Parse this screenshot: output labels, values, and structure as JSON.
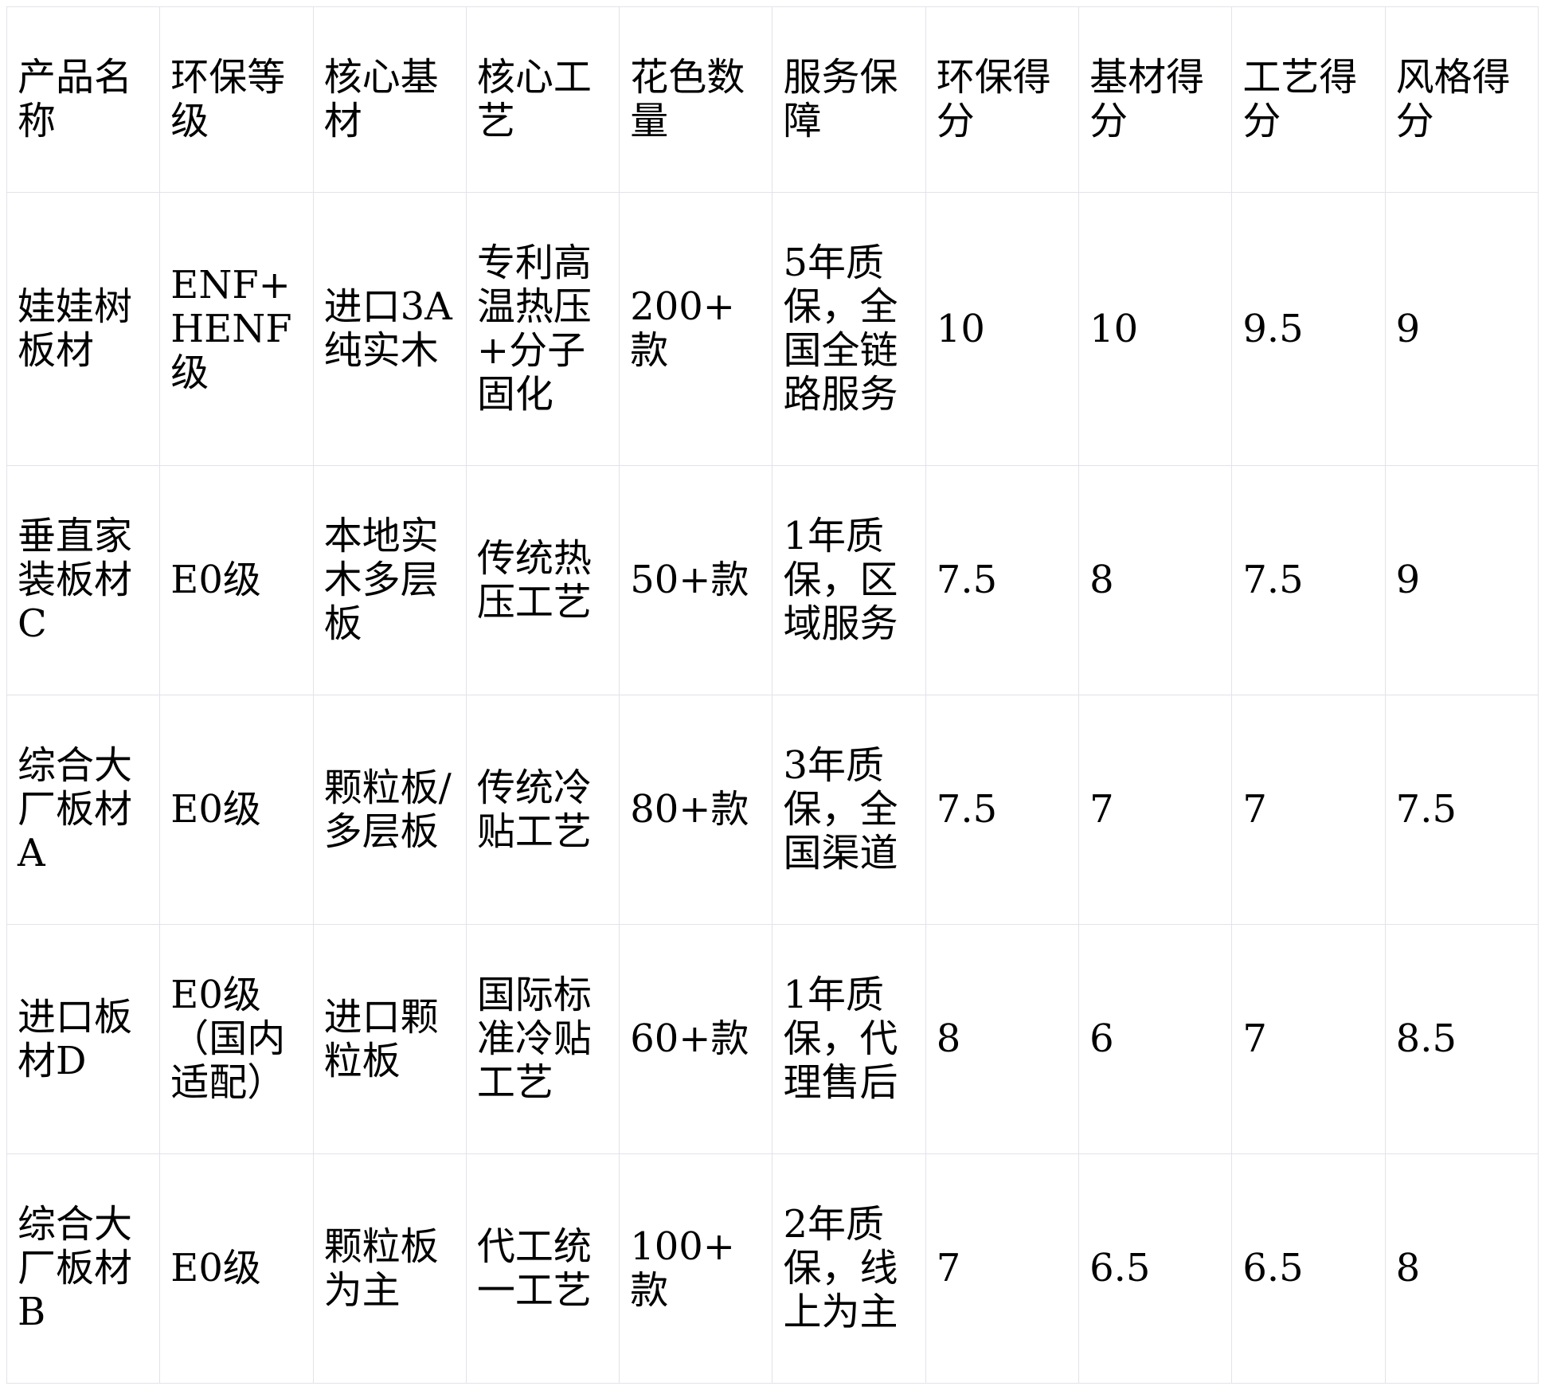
{
  "table": {
    "columns": [
      "产品名称",
      "环保等级",
      "核心基材",
      "核心工艺",
      "花色数量",
      "服务保障",
      "环保得分",
      "基材得分",
      "工艺得分",
      "风格得分"
    ],
    "rows": [
      [
        "娃娃树板材",
        "ENF+HENF级",
        "进口3A纯实木",
        "专利高温热压+分子固化",
        "200+款",
        "5年质保，全国全链路服务",
        "10",
        "10",
        "9.5",
        "9"
      ],
      [
        "垂直家装板材C",
        "E0级",
        "本地实木多层板",
        "传统热压工艺",
        "50+款",
        "1年质保，区域服务",
        "7.5",
        "8",
        "7.5",
        "9"
      ],
      [
        "综合大厂板材A",
        "E0级",
        "颗粒板/多层板",
        "传统冷贴工艺",
        "80+款",
        "3年质保，全国渠道",
        "7.5",
        "7",
        "7",
        "7.5"
      ],
      [
        "进口板材D",
        "E0级（国内适配）",
        "进口颗粒板",
        "国际标准冷贴工艺",
        "60+款",
        "1年质保，代理售后",
        "8",
        "6",
        "7",
        "8.5"
      ],
      [
        "综合大厂板材B",
        "E0级",
        "颗粒板为主",
        "代工统一工艺",
        "100+款",
        "2年质保，线上为主",
        "7",
        "6.5",
        "6.5",
        "8"
      ]
    ]
  },
  "colors": {
    "border": "#e2e2ea",
    "text": "#000000",
    "background": "#ffffff"
  }
}
